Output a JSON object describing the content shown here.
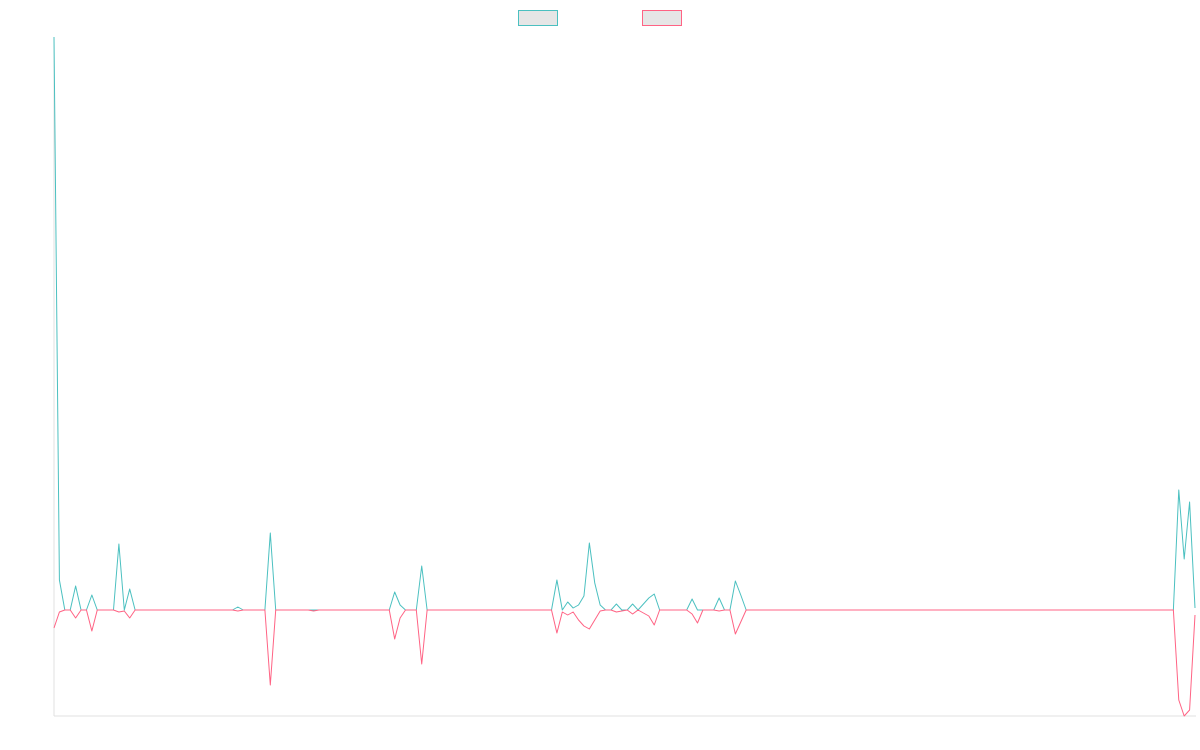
{
  "chart_data": {
    "type": "line",
    "ylim": [
      -106,
      573
    ],
    "legend": "top",
    "series": [
      {
        "color": "#4bc0c0",
        "values": [
          573,
          30,
          0,
          0,
          24,
          0,
          0,
          15,
          0,
          0,
          0,
          0,
          66,
          0,
          21,
          0,
          0,
          0,
          0,
          0,
          0,
          0,
          0,
          0,
          0,
          0,
          0,
          0,
          0,
          0,
          0,
          0,
          0,
          0,
          3,
          0,
          0,
          0,
          0,
          0,
          77,
          0,
          0,
          0,
          0,
          0,
          0,
          0,
          0,
          0,
          0,
          0,
          0,
          0,
          0,
          0,
          0,
          0,
          0,
          0,
          0,
          0,
          0,
          18,
          5,
          0,
          0,
          0,
          44,
          0,
          0,
          0,
          0,
          0,
          0,
          0,
          0,
          0,
          0,
          0,
          0,
          0,
          0,
          0,
          0,
          0,
          0,
          0,
          0,
          0,
          0,
          0,
          0,
          30,
          0,
          8,
          2,
          5,
          14,
          67,
          27,
          5,
          0,
          0,
          6,
          0,
          0,
          6,
          0,
          6,
          12,
          16,
          0,
          0,
          0,
          0,
          0,
          0,
          11,
          0,
          0,
          0,
          0,
          12,
          0,
          0,
          29,
          15,
          0,
          0,
          0,
          0,
          0,
          0,
          0,
          0,
          0,
          0,
          0,
          0,
          0,
          0,
          0,
          0,
          0,
          0,
          0,
          0,
          0,
          0,
          0,
          0,
          0,
          0,
          0,
          0,
          0,
          0,
          0,
          0,
          0,
          0,
          0,
          0,
          0,
          0,
          0,
          0,
          0,
          0,
          0,
          0,
          0,
          0,
          0,
          0,
          0,
          0,
          0,
          0,
          0,
          0,
          0,
          0,
          0,
          0,
          0,
          0,
          0,
          0,
          0,
          0,
          0,
          0,
          0,
          0,
          0,
          0,
          0,
          0,
          0,
          0,
          0,
          0,
          0,
          0,
          0,
          0,
          120,
          51,
          108,
          2
        ]
      },
      {
        "color": "#ff6384",
        "values": [
          -18,
          -2,
          0,
          0,
          -8,
          0,
          0,
          -21,
          0,
          0,
          0,
          0,
          -2,
          -1,
          -8,
          0,
          0,
          0,
          0,
          0,
          0,
          0,
          0,
          0,
          0,
          0,
          0,
          0,
          0,
          0,
          0,
          0,
          0,
          0,
          -1,
          0,
          0,
          0,
          0,
          0,
          -75,
          0,
          0,
          0,
          0,
          0,
          0,
          0,
          -1,
          0,
          0,
          0,
          0,
          0,
          0,
          0,
          0,
          0,
          0,
          0,
          0,
          0,
          0,
          -29,
          -8,
          0,
          0,
          0,
          -54,
          0,
          0,
          0,
          0,
          0,
          0,
          0,
          0,
          0,
          0,
          0,
          0,
          0,
          0,
          0,
          0,
          0,
          0,
          0,
          0,
          0,
          0,
          0,
          0,
          -23,
          -2,
          -5,
          -2,
          -10,
          -16,
          -19,
          -10,
          -1,
          0,
          0,
          -2,
          -1,
          0,
          -4,
          0,
          -3,
          -6,
          -15,
          0,
          0,
          0,
          0,
          0,
          0,
          -4,
          -13,
          0,
          0,
          0,
          -1,
          0,
          0,
          -24,
          -12,
          0,
          0,
          0,
          0,
          0,
          0,
          0,
          0,
          0,
          0,
          0,
          0,
          0,
          0,
          0,
          0,
          0,
          0,
          0,
          0,
          0,
          0,
          0,
          0,
          0,
          0,
          0,
          0,
          0,
          0,
          0,
          0,
          0,
          0,
          0,
          0,
          0,
          0,
          0,
          0,
          0,
          0,
          0,
          0,
          0,
          0,
          0,
          0,
          0,
          0,
          0,
          0,
          0,
          0,
          0,
          0,
          0,
          0,
          0,
          0,
          0,
          0,
          0,
          0,
          0,
          0,
          0,
          0,
          0,
          0,
          0,
          0,
          0,
          0,
          0,
          0,
          0,
          0,
          0,
          0,
          -90,
          -106,
          -100,
          -5
        ]
      }
    ]
  }
}
